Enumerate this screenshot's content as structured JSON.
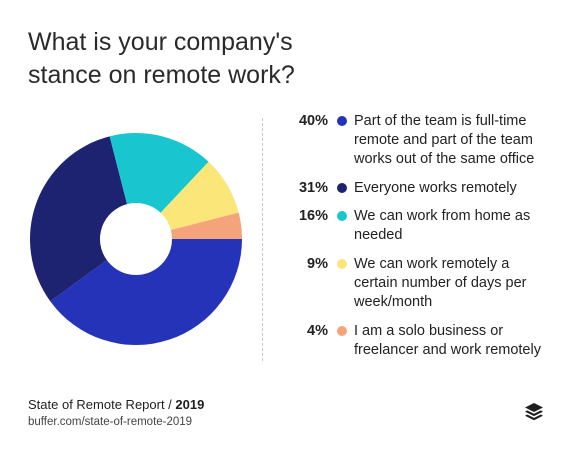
{
  "title_lines": [
    "What is your company's",
    "stance on remote work?"
  ],
  "chart_data": {
    "type": "pie",
    "title": "What is your company's stance on remote work?",
    "slices": [
      {
        "label": "Part of the team is full-time remote and part of the team works out of the same office",
        "pct_label": "40%",
        "value": 40,
        "color": "#2433b8"
      },
      {
        "label": "Everyone works remotely",
        "pct_label": "31%",
        "value": 31,
        "color": "#1d2370"
      },
      {
        "label": "We can work from home as needed",
        "pct_label": "16%",
        "value": 16,
        "color": "#19c6cf"
      },
      {
        "label": "We can work remotely a certain number of days per week/month",
        "pct_label": "9%",
        "value": 9,
        "color": "#fbe67a"
      },
      {
        "label": "I am a solo business or freelancer and work remotely",
        "pct_label": "4%",
        "value": 4,
        "color": "#f5a37a"
      }
    ]
  },
  "footer": {
    "report_name": "State of Remote Report /",
    "report_year": "2019",
    "url": "buffer.com/state-of-remote-2019"
  },
  "logo_icon": "buffer-stack-icon"
}
